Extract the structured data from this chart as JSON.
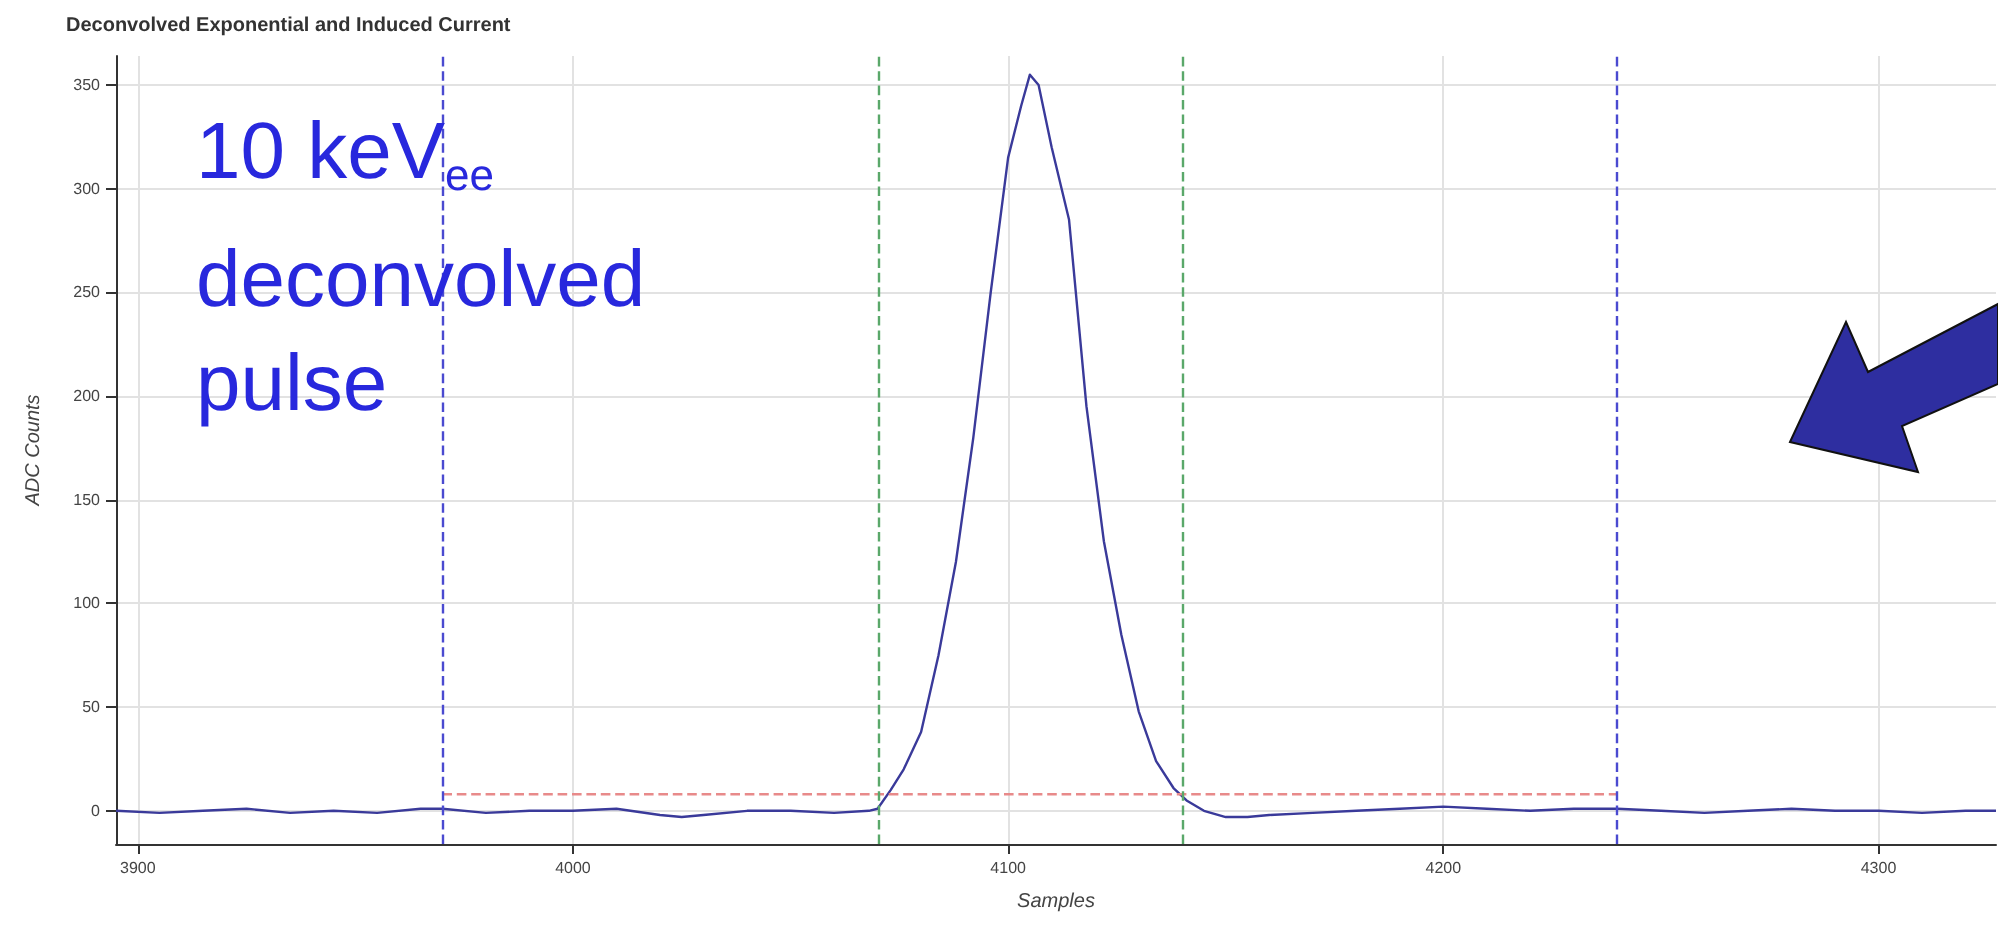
{
  "chart_data": {
    "type": "line",
    "title": "Deconvolved Exponential and Induced Current",
    "xlabel": "Samples",
    "ylabel": "ADC Counts",
    "annotations": [
      "10 keV$_{ee}$\ndeconvolved\npulse"
    ],
    "series": [
      {
        "color": "#3a3a9a",
        "x": [
          3895,
          3905,
          3915,
          3925,
          3935,
          3945,
          3955,
          3965,
          3970,
          3980,
          3990,
          4000,
          4010,
          4020,
          4025,
          4030,
          4040,
          4050,
          4060,
          4068,
          4070,
          4073,
          4076,
          4080,
          4084,
          4088,
          4092,
          4096,
          4100,
          4103,
          4105,
          4107,
          4110,
          4114,
          4118,
          4122,
          4126,
          4130,
          4134,
          4138,
          4141,
          4145,
          4150,
          4155,
          4160,
          4170,
          4180,
          4190,
          4200,
          4210,
          4220,
          4230,
          4240,
          4250,
          4260,
          4270,
          4280,
          4290,
          4300,
          4310,
          4320,
          4327
        ],
        "values": [
          0,
          -1,
          0,
          1,
          -1,
          0,
          -1,
          1,
          1,
          -1,
          0,
          0,
          1,
          -2,
          -3,
          -2,
          0,
          0,
          -1,
          0,
          1,
          10,
          20,
          38,
          75,
          120,
          180,
          250,
          315,
          340,
          355,
          350,
          320,
          285,
          195,
          130,
          85,
          48,
          24,
          11,
          5,
          0,
          -3,
          -3,
          -2,
          -1,
          0,
          1,
          2,
          1,
          0,
          1,
          1,
          0,
          -1,
          0,
          1,
          0,
          0,
          -1,
          0,
          0
        ]
      },
      {
        "color": "#e88a8a",
        "line_style": "dashed",
        "x": [
          3970,
          4240
        ],
        "values": [
          8,
          8
        ]
      }
    ],
    "xlim": [
      3895,
      4327
    ],
    "xticks": [
      3900,
      4000,
      4100,
      4200,
      4300
    ],
    "ylim": [
      -16,
      364
    ],
    "yticks": [
      0,
      50,
      100,
      150,
      200,
      250,
      300,
      350
    ],
    "grid": true,
    "marker": "none",
    "ref_lines": [
      {
        "axis": "x",
        "value": 3970,
        "color": "#4a4ad0",
        "line_style": "dashed"
      },
      {
        "axis": "x",
        "value": 4070,
        "color": "#5aa86a",
        "line_style": "dashed"
      },
      {
        "axis": "x",
        "value": 4140,
        "color": "#5aa86a",
        "line_style": "dashed"
      },
      {
        "axis": "x",
        "value": 4240,
        "color": "#4a4ad0",
        "line_style": "dashed"
      }
    ]
  }
}
